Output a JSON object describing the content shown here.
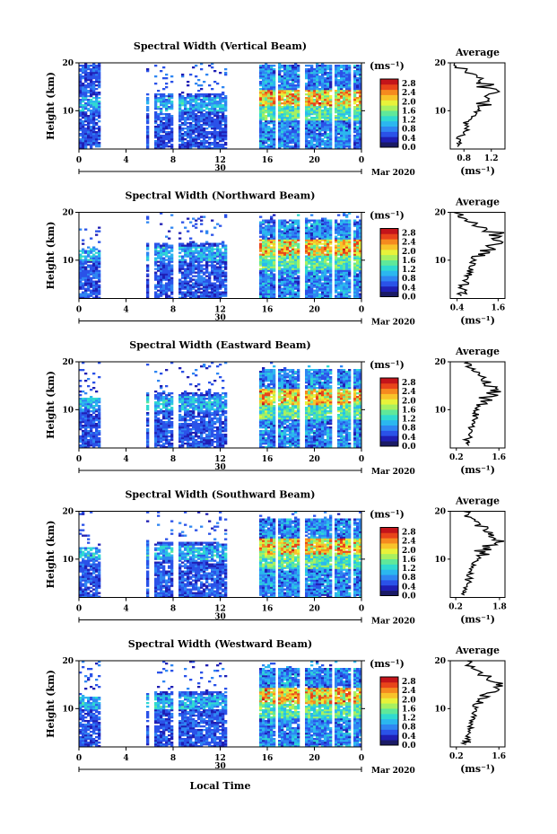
{
  "chart_data": {
    "type": "heatmap",
    "time_range": [
      0,
      24
    ],
    "height_range": [
      2,
      20
    ],
    "x_ticks": [
      "0",
      "4",
      "8",
      "12",
      "16",
      "20",
      "0"
    ],
    "y_ticks": [
      "20",
      "10"
    ],
    "ylabel": "Height (km)",
    "xlabel": "Local Time",
    "day_label": "30",
    "month_label": "Mar 2020",
    "colorbar": {
      "unit": "(ms⁻¹)",
      "ticks": [
        "2.8",
        "2.4",
        "2.0",
        "1.6",
        "1.2",
        "0.8",
        "0.4",
        "0.0"
      ],
      "range": [
        0,
        3.0
      ],
      "colors": [
        "#1a1a66",
        "#1f1fb4",
        "#2a52e8",
        "#2f86f2",
        "#2bb7ef",
        "#30dad0",
        "#5fe89a",
        "#a8f060",
        "#e8f23a",
        "#f8c32a",
        "#f58a1f",
        "#e8441a",
        "#c4141a"
      ]
    },
    "panels": [
      {
        "title": "Spectral Width (Vertical Beam)",
        "avg_title": "Average",
        "avg_xticks": [
          "0.8",
          "1.2"
        ],
        "avg_xrange": [
          0.6,
          1.4
        ],
        "avg_xlabel": "(ms⁻¹)",
        "profile_h": [
          2.5,
          3,
          4,
          5,
          6,
          7,
          8,
          9,
          10,
          11,
          12,
          13,
          14,
          15,
          16,
          17,
          18,
          19,
          20
        ],
        "profile_v": [
          0.7,
          0.75,
          0.72,
          0.8,
          0.85,
          0.82,
          0.9,
          0.95,
          1.0,
          1.1,
          1.2,
          1.15,
          1.25,
          1.1,
          1.05,
          0.95,
          0.8,
          0.7,
          0.7
        ]
      },
      {
        "title": "Spectral Width (Northward Beam)",
        "avg_title": "Average",
        "avg_xticks": [
          "0.4",
          "1.6"
        ],
        "avg_xrange": [
          0.2,
          1.8
        ],
        "avg_xlabel": "(ms⁻¹)",
        "profile_h": [
          2.5,
          3,
          4,
          5,
          6,
          7,
          8,
          9,
          10,
          11,
          12,
          13,
          14,
          15,
          16,
          17,
          18,
          19,
          20
        ],
        "profile_v": [
          0.5,
          0.6,
          0.55,
          0.65,
          0.7,
          0.75,
          0.8,
          0.85,
          0.9,
          1.1,
          1.3,
          1.5,
          1.4,
          1.6,
          1.2,
          0.9,
          0.7,
          0.5,
          0.4
        ]
      },
      {
        "title": "Spectral Width (Eastward Beam)",
        "avg_title": "Average",
        "avg_xticks": [
          "0.2",
          "1.6"
        ],
        "avg_xrange": [
          0.0,
          1.8
        ],
        "avg_xlabel": "(ms⁻¹)",
        "profile_h": [
          2.5,
          3,
          4,
          5,
          6,
          7,
          8,
          9,
          10,
          11,
          12,
          13,
          14,
          15,
          16,
          17,
          18,
          19,
          20
        ],
        "profile_v": [
          0.6,
          0.5,
          0.65,
          0.7,
          0.7,
          0.75,
          0.8,
          0.85,
          0.9,
          1.0,
          1.2,
          1.4,
          1.5,
          1.3,
          1.1,
          0.9,
          0.7,
          0.6,
          0.5
        ]
      },
      {
        "title": "Spectral Width (Southward Beam)",
        "avg_title": "Average",
        "avg_xticks": [
          "0.2",
          "1.8"
        ],
        "avg_xrange": [
          0.0,
          2.0
        ],
        "avg_xlabel": "(ms⁻¹)",
        "profile_h": [
          2.5,
          3,
          4,
          5,
          6,
          7,
          8,
          9,
          10,
          11,
          12,
          13,
          14,
          15,
          16,
          17,
          18,
          19,
          20
        ],
        "profile_v": [
          0.5,
          0.55,
          0.6,
          0.65,
          0.7,
          0.75,
          0.8,
          0.9,
          1.0,
          1.2,
          1.5,
          1.7,
          1.6,
          1.4,
          1.3,
          1.0,
          0.8,
          0.6,
          0.4
        ]
      },
      {
        "title": "Spectral Width (Westward Beam)",
        "avg_title": "Average",
        "avg_xticks": [
          "0.2",
          "1.6"
        ],
        "avg_xrange": [
          0.0,
          1.8
        ],
        "avg_xlabel": "(ms⁻¹)",
        "profile_h": [
          2.5,
          3,
          4,
          5,
          6,
          7,
          8,
          9,
          10,
          11,
          12,
          13,
          14,
          15,
          16,
          17,
          18,
          19,
          20
        ],
        "profile_v": [
          0.5,
          0.6,
          0.55,
          0.6,
          0.7,
          0.7,
          0.75,
          0.8,
          0.85,
          0.9,
          1.1,
          1.3,
          1.5,
          1.6,
          1.3,
          1.0,
          0.8,
          0.6,
          0.5
        ]
      }
    ]
  }
}
